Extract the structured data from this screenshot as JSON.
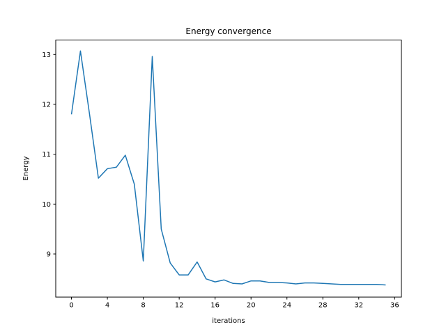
{
  "figure": {
    "background": "#ffffff",
    "axes_color": "#000000"
  },
  "chart_data": {
    "type": "line",
    "title": "Energy convergence",
    "xlabel": "iterations",
    "ylabel": "Energy",
    "x": [
      0,
      1,
      2,
      3,
      4,
      5,
      6,
      7,
      8,
      9,
      10,
      11,
      12,
      13,
      14,
      15,
      16,
      17,
      18,
      19,
      20,
      21,
      22,
      23,
      24,
      25,
      26,
      27,
      28,
      29,
      30,
      31,
      32,
      33,
      34,
      35
    ],
    "y": [
      11.8,
      13.07,
      11.82,
      10.52,
      10.71,
      10.74,
      10.98,
      10.4,
      8.86,
      12.96,
      9.5,
      8.82,
      8.58,
      8.58,
      8.84,
      8.5,
      8.44,
      8.48,
      8.41,
      8.4,
      8.46,
      8.46,
      8.43,
      8.43,
      8.42,
      8.4,
      8.42,
      8.42,
      8.41,
      8.4,
      8.39,
      8.39,
      8.39,
      8.39,
      8.39,
      8.38
    ],
    "xticks": [
      0,
      4,
      8,
      12,
      16,
      20,
      24,
      28,
      32,
      36
    ],
    "yticks": [
      9,
      10,
      11,
      12,
      13
    ],
    "xlim": [
      -1.75,
      36.75
    ],
    "ylim": [
      8.135,
      13.29
    ],
    "line_color": "#1f77b4",
    "grid": false,
    "legend": "none"
  }
}
